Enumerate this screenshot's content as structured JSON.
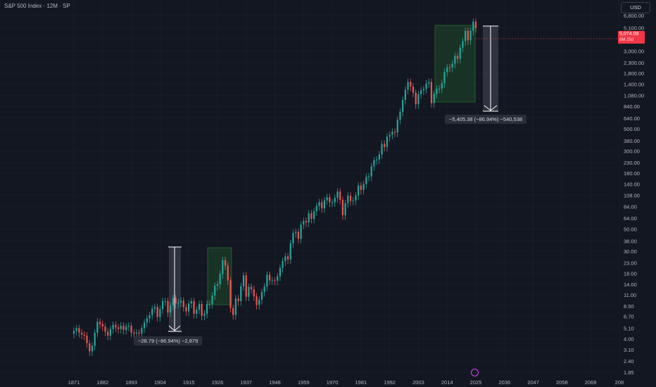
{
  "header": {
    "title": "S&P 500 Index · 12M · SP",
    "currency_button": "USD"
  },
  "price_label": {
    "value": "5,074.09",
    "timer": "8M 25d"
  },
  "measure_labels": {
    "left": "−28.79 (−86.94%) −2,879",
    "right": "−5,405.38 (−86.94%) −540,538"
  },
  "colors": {
    "background": "#131722",
    "up": "#26a69a",
    "down": "#ef5350",
    "grid": "#1e222d",
    "axis_text": "#b2b5be"
  },
  "chart_data": {
    "type": "candlestick",
    "y_scale": "log",
    "ylim": [
      1.6,
      8500
    ],
    "xlim": [
      1866,
      2082
    ],
    "y_tick_labels": [
      "1.85",
      "2.40",
      "3.10",
      "4.00",
      "5.10",
      "6.70",
      "8.50",
      "11.00",
      "14.00",
      "18.00",
      "23.00",
      "30.00",
      "38.00",
      "50.00",
      "64.00",
      "84.00",
      "108.00",
      "140.00",
      "180.00",
      "230.00",
      "300.00",
      "380.00",
      "500.00",
      "640.00",
      "840.00",
      "1,080.00",
      "1,400.00",
      "1,800.00",
      "2,300.00",
      "3,000.00",
      "4,000.00",
      "5,100.00",
      "6,800.00"
    ],
    "x_tick_labels": [
      "1871",
      "1882",
      "1893",
      "1904",
      "1915",
      "1926",
      "1937",
      "1948",
      "1959",
      "1970",
      "1981",
      "1992",
      "2003",
      "2014",
      "2025",
      "2036",
      "2047",
      "2058",
      "2069",
      "208"
    ],
    "series": [
      {
        "year": 1871,
        "o": 4.5,
        "c": 4.8
      },
      {
        "year": 1872,
        "o": 4.8,
        "c": 5.1
      },
      {
        "year": 1873,
        "o": 5.1,
        "c": 4.6
      },
      {
        "year": 1874,
        "o": 4.6,
        "c": 4.4
      },
      {
        "year": 1875,
        "o": 4.4,
        "c": 4.3
      },
      {
        "year": 1876,
        "o": 4.3,
        "c": 3.6
      },
      {
        "year": 1877,
        "o": 3.6,
        "c": 3.0
      },
      {
        "year": 1878,
        "o": 3.0,
        "c": 3.4
      },
      {
        "year": 1879,
        "o": 3.4,
        "c": 4.6
      },
      {
        "year": 1880,
        "o": 4.6,
        "c": 5.9
      },
      {
        "year": 1881,
        "o": 5.9,
        "c": 5.6
      },
      {
        "year": 1882,
        "o": 5.6,
        "c": 5.3
      },
      {
        "year": 1883,
        "o": 5.3,
        "c": 4.7
      },
      {
        "year": 1884,
        "o": 4.7,
        "c": 4.3
      },
      {
        "year": 1885,
        "o": 4.3,
        "c": 5.0
      },
      {
        "year": 1886,
        "o": 5.0,
        "c": 5.5
      },
      {
        "year": 1887,
        "o": 5.5,
        "c": 5.2
      },
      {
        "year": 1888,
        "o": 5.2,
        "c": 5.0
      },
      {
        "year": 1889,
        "o": 5.0,
        "c": 5.4
      },
      {
        "year": 1890,
        "o": 5.4,
        "c": 4.9
      },
      {
        "year": 1891,
        "o": 4.9,
        "c": 5.3
      },
      {
        "year": 1892,
        "o": 5.3,
        "c": 5.4
      },
      {
        "year": 1893,
        "o": 5.4,
        "c": 4.6
      },
      {
        "year": 1894,
        "o": 4.6,
        "c": 4.5
      },
      {
        "year": 1895,
        "o": 4.5,
        "c": 4.6
      },
      {
        "year": 1896,
        "o": 4.6,
        "c": 4.5
      },
      {
        "year": 1897,
        "o": 4.5,
        "c": 5.1
      },
      {
        "year": 1898,
        "o": 5.1,
        "c": 5.8
      },
      {
        "year": 1899,
        "o": 5.8,
        "c": 6.4
      },
      {
        "year": 1900,
        "o": 6.4,
        "c": 6.9
      },
      {
        "year": 1901,
        "o": 6.9,
        "c": 8.0
      },
      {
        "year": 1902,
        "o": 8.0,
        "c": 8.3
      },
      {
        "year": 1903,
        "o": 8.3,
        "c": 6.6
      },
      {
        "year": 1904,
        "o": 6.6,
        "c": 7.9
      },
      {
        "year": 1905,
        "o": 7.9,
        "c": 9.5
      },
      {
        "year": 1906,
        "o": 9.5,
        "c": 9.5
      },
      {
        "year": 1907,
        "o": 9.5,
        "c": 7.3
      },
      {
        "year": 1908,
        "o": 7.3,
        "c": 8.6
      },
      {
        "year": 1909,
        "o": 8.6,
        "c": 10.2
      },
      {
        "year": 1910,
        "o": 10.2,
        "c": 9.0
      },
      {
        "year": 1911,
        "o": 9.0,
        "c": 9.2
      },
      {
        "year": 1912,
        "o": 9.2,
        "c": 9.6
      },
      {
        "year": 1913,
        "o": 9.6,
        "c": 8.3
      },
      {
        "year": 1914,
        "o": 8.3,
        "c": 7.5
      },
      {
        "year": 1915,
        "o": 7.5,
        "c": 9.0
      },
      {
        "year": 1916,
        "o": 9.0,
        "c": 9.5
      },
      {
        "year": 1917,
        "o": 9.5,
        "c": 7.1
      },
      {
        "year": 1918,
        "o": 7.1,
        "c": 7.8
      },
      {
        "year": 1919,
        "o": 7.8,
        "c": 8.9
      },
      {
        "year": 1920,
        "o": 8.9,
        "c": 6.8
      },
      {
        "year": 1921,
        "o": 6.8,
        "c": 7.1
      },
      {
        "year": 1922,
        "o": 7.1,
        "c": 8.9
      },
      {
        "year": 1923,
        "o": 8.9,
        "c": 8.9
      },
      {
        "year": 1924,
        "o": 8.9,
        "c": 10.8
      },
      {
        "year": 1925,
        "o": 10.8,
        "c": 13.5
      },
      {
        "year": 1926,
        "o": 13.5,
        "c": 14.0
      },
      {
        "year": 1927,
        "o": 14.0,
        "c": 17.7
      },
      {
        "year": 1928,
        "o": 17.7,
        "c": 24.4
      },
      {
        "year": 1929,
        "o": 24.4,
        "c": 21.5
      },
      {
        "year": 1930,
        "o": 21.5,
        "c": 15.3
      },
      {
        "year": 1931,
        "o": 15.3,
        "c": 8.1
      },
      {
        "year": 1932,
        "o": 8.1,
        "c": 6.9
      },
      {
        "year": 1933,
        "o": 6.9,
        "c": 10.1
      },
      {
        "year": 1934,
        "o": 10.1,
        "c": 9.5
      },
      {
        "year": 1935,
        "o": 9.5,
        "c": 13.4
      },
      {
        "year": 1936,
        "o": 13.4,
        "c": 17.2
      },
      {
        "year": 1937,
        "o": 17.2,
        "c": 10.5
      },
      {
        "year": 1938,
        "o": 10.5,
        "c": 13.2
      },
      {
        "year": 1939,
        "o": 13.2,
        "c": 12.5
      },
      {
        "year": 1940,
        "o": 12.5,
        "c": 10.6
      },
      {
        "year": 1941,
        "o": 10.6,
        "c": 8.7
      },
      {
        "year": 1942,
        "o": 8.7,
        "c": 9.8
      },
      {
        "year": 1943,
        "o": 9.8,
        "c": 11.7
      },
      {
        "year": 1944,
        "o": 11.7,
        "c": 13.3
      },
      {
        "year": 1945,
        "o": 13.3,
        "c": 17.4
      },
      {
        "year": 1946,
        "o": 17.4,
        "c": 15.3
      },
      {
        "year": 1947,
        "o": 15.3,
        "c": 15.3
      },
      {
        "year": 1948,
        "o": 15.3,
        "c": 15.2
      },
      {
        "year": 1949,
        "o": 15.2,
        "c": 16.8
      },
      {
        "year": 1950,
        "o": 16.8,
        "c": 20.4
      },
      {
        "year": 1951,
        "o": 20.4,
        "c": 23.8
      },
      {
        "year": 1952,
        "o": 23.8,
        "c": 26.6
      },
      {
        "year": 1953,
        "o": 26.6,
        "c": 24.8
      },
      {
        "year": 1954,
        "o": 24.8,
        "c": 35.9
      },
      {
        "year": 1955,
        "o": 35.9,
        "c": 45.5
      },
      {
        "year": 1956,
        "o": 45.5,
        "c": 46.7
      },
      {
        "year": 1957,
        "o": 46.7,
        "c": 39.9
      },
      {
        "year": 1958,
        "o": 39.9,
        "c": 55.2
      },
      {
        "year": 1959,
        "o": 55.2,
        "c": 59.9
      },
      {
        "year": 1960,
        "o": 59.9,
        "c": 58.1
      },
      {
        "year": 1961,
        "o": 58.1,
        "c": 71.6
      },
      {
        "year": 1962,
        "o": 71.6,
        "c": 63.1
      },
      {
        "year": 1963,
        "o": 63.1,
        "c": 75.0
      },
      {
        "year": 1964,
        "o": 75.0,
        "c": 84.8
      },
      {
        "year": 1965,
        "o": 84.8,
        "c": 92.4
      },
      {
        "year": 1966,
        "o": 92.4,
        "c": 80.3
      },
      {
        "year": 1967,
        "o": 80.3,
        "c": 96.5
      },
      {
        "year": 1968,
        "o": 96.5,
        "c": 103.9
      },
      {
        "year": 1969,
        "o": 103.9,
        "c": 92.1
      },
      {
        "year": 1970,
        "o": 92.1,
        "c": 92.2
      },
      {
        "year": 1971,
        "o": 92.2,
        "c": 102.1
      },
      {
        "year": 1972,
        "o": 102.1,
        "c": 118.1
      },
      {
        "year": 1973,
        "o": 118.1,
        "c": 97.6
      },
      {
        "year": 1974,
        "o": 97.6,
        "c": 68.6
      },
      {
        "year": 1975,
        "o": 68.6,
        "c": 90.2
      },
      {
        "year": 1976,
        "o": 90.2,
        "c": 107.5
      },
      {
        "year": 1977,
        "o": 107.5,
        "c": 95.1
      },
      {
        "year": 1978,
        "o": 95.1,
        "c": 96.1
      },
      {
        "year": 1979,
        "o": 96.1,
        "c": 107.9
      },
      {
        "year": 1980,
        "o": 107.9,
        "c": 135.8
      },
      {
        "year": 1981,
        "o": 135.8,
        "c": 122.6
      },
      {
        "year": 1982,
        "o": 122.6,
        "c": 140.6
      },
      {
        "year": 1983,
        "o": 140.6,
        "c": 164.9
      },
      {
        "year": 1984,
        "o": 164.9,
        "c": 167.2
      },
      {
        "year": 1985,
        "o": 167.2,
        "c": 211.3
      },
      {
        "year": 1986,
        "o": 211.3,
        "c": 242.2
      },
      {
        "year": 1987,
        "o": 242.2,
        "c": 247.1
      },
      {
        "year": 1988,
        "o": 247.1,
        "c": 277.7
      },
      {
        "year": 1989,
        "o": 277.7,
        "c": 353.4
      },
      {
        "year": 1990,
        "o": 353.4,
        "c": 330.2
      },
      {
        "year": 1991,
        "o": 330.2,
        "c": 417.1
      },
      {
        "year": 1992,
        "o": 417.1,
        "c": 435.7
      },
      {
        "year": 1993,
        "o": 435.7,
        "c": 466.5
      },
      {
        "year": 1994,
        "o": 466.5,
        "c": 459.3
      },
      {
        "year": 1995,
        "o": 459.3,
        "c": 615.9
      },
      {
        "year": 1996,
        "o": 615.9,
        "c": 740.7
      },
      {
        "year": 1997,
        "o": 740.7,
        "c": 970.4
      },
      {
        "year": 1998,
        "o": 970.4,
        "c": 1229.2
      },
      {
        "year": 1999,
        "o": 1229.2,
        "c": 1469.3
      },
      {
        "year": 2000,
        "o": 1469.3,
        "c": 1320.3
      },
      {
        "year": 2001,
        "o": 1320.3,
        "c": 1148.1
      },
      {
        "year": 2002,
        "o": 1148.1,
        "c": 879.8
      },
      {
        "year": 2003,
        "o": 879.8,
        "c": 1111.9
      },
      {
        "year": 2004,
        "o": 1111.9,
        "c": 1211.9
      },
      {
        "year": 2005,
        "o": 1211.9,
        "c": 1248.3
      },
      {
        "year": 2006,
        "o": 1248.3,
        "c": 1418.3
      },
      {
        "year": 2007,
        "o": 1418.3,
        "c": 1468.4
      },
      {
        "year": 2008,
        "o": 1468.4,
        "c": 903.3
      },
      {
        "year": 2009,
        "o": 903.3,
        "c": 1115.1
      },
      {
        "year": 2010,
        "o": 1115.1,
        "c": 1257.6
      },
      {
        "year": 2011,
        "o": 1257.6,
        "c": 1257.6
      },
      {
        "year": 2012,
        "o": 1257.6,
        "c": 1426.2
      },
      {
        "year": 2013,
        "o": 1426.2,
        "c": 1848.4
      },
      {
        "year": 2014,
        "o": 1848.4,
        "c": 2058.9
      },
      {
        "year": 2015,
        "o": 2058.9,
        "c": 2043.9
      },
      {
        "year": 2016,
        "o": 2043.9,
        "c": 2238.8
      },
      {
        "year": 2017,
        "o": 2238.8,
        "c": 2673.6
      },
      {
        "year": 2018,
        "o": 2673.6,
        "c": 2506.9
      },
      {
        "year": 2019,
        "o": 2506.9,
        "c": 3230.8
      },
      {
        "year": 2020,
        "o": 3230.8,
        "c": 3756.1
      },
      {
        "year": 2021,
        "o": 3756.1,
        "c": 4766.2
      },
      {
        "year": 2022,
        "o": 4766.2,
        "c": 3839.5
      },
      {
        "year": 2023,
        "o": 3839.5,
        "c": 4769.8
      },
      {
        "year": 2024,
        "o": 4769.8,
        "c": 5881.6
      },
      {
        "year": 2025,
        "o": 5881.6,
        "c": 5074.09
      }
    ]
  }
}
